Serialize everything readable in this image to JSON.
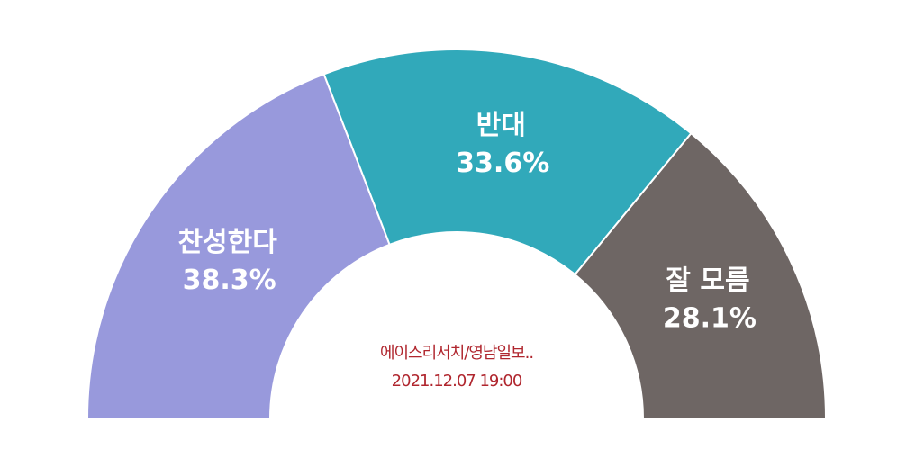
{
  "chart_data": {
    "type": "half_donut",
    "categories": [
      "찬성한다",
      "반대",
      "잘 모름"
    ],
    "values": [
      38.3,
      33.6,
      28.1
    ],
    "value_labels": [
      "38.3%",
      "33.6%",
      "28.1%"
    ],
    "colors": [
      "#9899dc",
      "#31a9ba",
      "#6e6664"
    ],
    "annotations": [
      "에이스리서치/영남일보..",
      "2021.12.07 19:00"
    ]
  }
}
